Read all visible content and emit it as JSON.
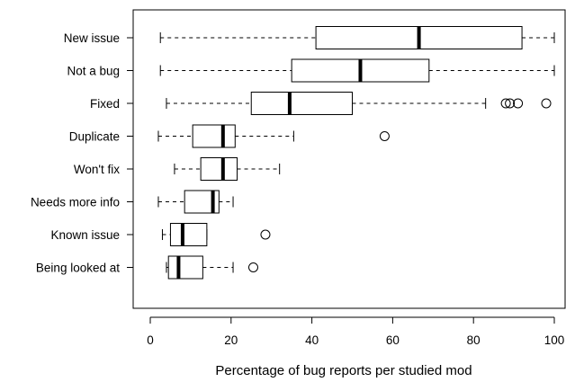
{
  "chart_data": {
    "type": "boxplot",
    "orientation": "horizontal",
    "xlabel": "Percentage of bug reports per studied mod",
    "xlim": [
      -4,
      103
    ],
    "xticks": [
      0,
      20,
      40,
      60,
      80,
      100
    ],
    "grid": false,
    "categories": [
      "New issue",
      "Not a bug",
      "Fixed",
      "Duplicate",
      "Won't fix",
      "Needs more info",
      "Known issue",
      "Being looked at"
    ],
    "boxes": [
      {
        "name": "New issue",
        "whisker_low": 2.5,
        "q1": 41,
        "median": 66.5,
        "q3": 92,
        "whisker_high": 100,
        "outliers": []
      },
      {
        "name": "Not a bug",
        "whisker_low": 2.5,
        "q1": 35,
        "median": 52,
        "q3": 69,
        "whisker_high": 100,
        "outliers": []
      },
      {
        "name": "Fixed",
        "whisker_low": 4,
        "q1": 25,
        "median": 34.5,
        "q3": 50,
        "whisker_high": 83,
        "outliers": [
          88,
          89,
          91,
          98
        ]
      },
      {
        "name": "Duplicate",
        "whisker_low": 2,
        "q1": 10.5,
        "median": 18,
        "q3": 21,
        "whisker_high": 35.5,
        "outliers": [
          58
        ]
      },
      {
        "name": "Won't fix",
        "whisker_low": 6,
        "q1": 12.5,
        "median": 18,
        "q3": 21.5,
        "whisker_high": 32,
        "outliers": []
      },
      {
        "name": "Needs more info",
        "whisker_low": 2,
        "q1": 8.5,
        "median": 15.5,
        "q3": 17,
        "whisker_high": 20.5,
        "outliers": []
      },
      {
        "name": "Known issue",
        "whisker_low": 3,
        "q1": 5,
        "median": 8,
        "q3": 14,
        "whisker_high": 14,
        "outliers": [
          28.5
        ]
      },
      {
        "name": "Being looked at",
        "whisker_low": 4,
        "q1": 4.5,
        "median": 7,
        "q3": 13,
        "whisker_high": 20.5,
        "outliers": [
          25.5
        ]
      }
    ]
  }
}
